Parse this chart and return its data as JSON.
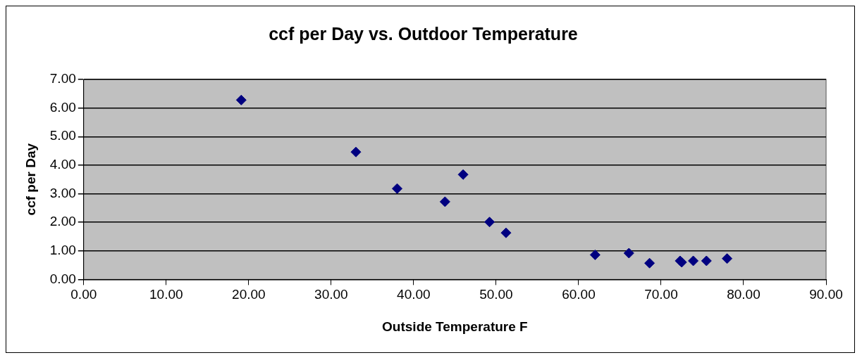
{
  "chart_data": {
    "type": "scatter",
    "title": "ccf per Day vs. Outdoor Temperature",
    "xlabel": "Outside Temperature F",
    "ylabel": "ccf per Day",
    "x": [
      19.1,
      33.0,
      38.0,
      43.8,
      46.0,
      49.2,
      51.2,
      62.0,
      66.1,
      68.6,
      72.3,
      72.5,
      73.9,
      75.5,
      78.0
    ],
    "series": [
      {
        "color": "#000080",
        "values": [
          6.28,
          4.46,
          3.18,
          2.72,
          3.67,
          2.01,
          1.63,
          0.86,
          0.92,
          0.57,
          0.65,
          0.6,
          0.65,
          0.65,
          0.73
        ]
      }
    ],
    "xlim": [
      0,
      90
    ],
    "xticks": [
      {
        "value": 0,
        "label": "0.00"
      },
      {
        "value": 10,
        "label": "10.00"
      },
      {
        "value": 20,
        "label": "20.00"
      },
      {
        "value": 30,
        "label": "30.00"
      },
      {
        "value": 40,
        "label": "40.00"
      },
      {
        "value": 50,
        "label": "50.00"
      },
      {
        "value": 60,
        "label": "60.00"
      },
      {
        "value": 70,
        "label": "70.00"
      },
      {
        "value": 80,
        "label": "80.00"
      },
      {
        "value": 90,
        "label": "90.00"
      }
    ],
    "ylim": [
      0,
      7
    ],
    "yticks": [
      {
        "value": 0,
        "label": "0.00"
      },
      {
        "value": 1,
        "label": "1.00"
      },
      {
        "value": 2,
        "label": "2.00"
      },
      {
        "value": 3,
        "label": "3.00"
      },
      {
        "value": 4,
        "label": "4.00"
      },
      {
        "value": 5,
        "label": "5.00"
      },
      {
        "value": 6,
        "label": "6.00"
      },
      {
        "value": 7,
        "label": "7.00"
      }
    ],
    "grid": "y",
    "marker": "diamond",
    "legend": false
  }
}
